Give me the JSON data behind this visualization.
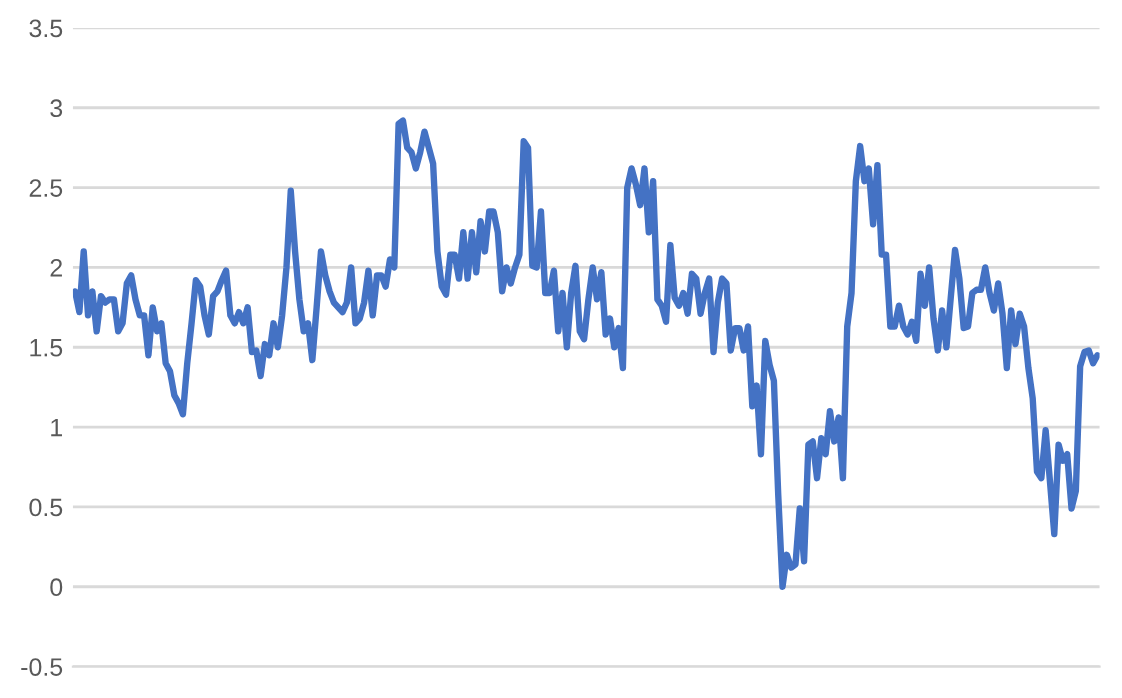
{
  "chart_data": {
    "type": "line",
    "ylim": [
      -0.5,
      3.5
    ],
    "yticks": [
      -0.5,
      0,
      0.5,
      1,
      1.5,
      2,
      2.5,
      3,
      3.5
    ],
    "grid": "y",
    "marker": "none",
    "line_style": "solid",
    "series": [
      {
        "color": "#4472c4",
        "values": [
          1.85,
          1.72,
          2.1,
          1.7,
          1.85,
          1.6,
          1.82,
          1.78,
          1.8,
          1.8,
          1.6,
          1.65,
          1.9,
          1.95,
          1.8,
          1.7,
          1.7,
          1.45,
          1.75,
          1.6,
          1.65,
          1.4,
          1.35,
          1.2,
          1.15,
          1.08,
          1.4,
          1.65,
          1.92,
          1.88,
          1.7,
          1.58,
          1.82,
          1.85,
          1.92,
          1.98,
          1.7,
          1.65,
          1.72,
          1.65,
          1.75,
          1.47,
          1.48,
          1.32,
          1.52,
          1.45,
          1.65,
          1.5,
          1.7,
          2.0,
          2.48,
          2.1,
          1.8,
          1.6,
          1.65,
          1.42,
          1.75,
          2.1,
          1.95,
          1.85,
          1.78,
          1.75,
          1.72,
          1.78,
          2.0,
          1.65,
          1.68,
          1.78,
          1.98,
          1.7,
          1.95,
          1.95,
          1.88,
          2.05,
          2.0,
          2.9,
          2.92,
          2.75,
          2.72,
          2.62,
          2.72,
          2.85,
          2.75,
          2.65,
          2.1,
          1.88,
          1.83,
          2.08,
          2.08,
          1.93,
          2.22,
          1.93,
          2.22,
          1.97,
          2.29,
          2.1,
          2.35,
          2.35,
          2.22,
          1.85,
          2.0,
          1.9,
          2.0,
          2.08,
          2.79,
          2.75,
          2.01,
          2.0,
          2.35,
          1.84,
          1.84,
          1.98,
          1.6,
          1.84,
          1.5,
          1.84,
          2.01,
          1.6,
          1.55,
          1.8,
          2.0,
          1.8,
          1.97,
          1.58,
          1.68,
          1.5,
          1.62,
          1.37,
          2.5,
          2.62,
          2.52,
          2.39,
          2.62,
          2.22,
          2.54,
          1.8,
          1.76,
          1.66,
          2.14,
          1.81,
          1.76,
          1.84,
          1.71,
          1.96,
          1.93,
          1.71,
          1.84,
          1.93,
          1.47,
          1.78,
          1.93,
          1.9,
          1.48,
          1.62,
          1.62,
          1.48,
          1.63,
          1.13,
          1.26,
          0.83,
          1.54,
          1.39,
          1.29,
          0.58,
          0.0,
          0.2,
          0.12,
          0.14,
          0.49,
          0.16,
          0.89,
          0.91,
          0.68,
          0.93,
          0.83,
          1.1,
          0.91,
          1.06,
          0.68,
          1.63,
          1.84,
          2.54,
          2.76,
          2.54,
          2.62,
          2.27,
          2.64,
          2.08,
          2.08,
          1.63,
          1.63,
          1.76,
          1.63,
          1.58,
          1.66,
          1.54,
          1.96,
          1.76,
          2.0,
          1.68,
          1.48,
          1.73,
          1.5,
          1.81,
          2.11,
          1.93,
          1.62,
          1.63,
          1.84,
          1.86,
          1.86,
          2.0,
          1.84,
          1.73,
          1.9,
          1.71,
          1.37,
          1.73,
          1.52,
          1.71,
          1.63,
          1.37,
          1.18,
          0.72,
          0.68,
          0.98,
          0.66,
          0.33,
          0.89,
          0.79,
          0.83,
          0.49,
          0.6,
          1.38,
          1.47,
          1.48,
          1.4,
          1.45
        ]
      }
    ]
  }
}
